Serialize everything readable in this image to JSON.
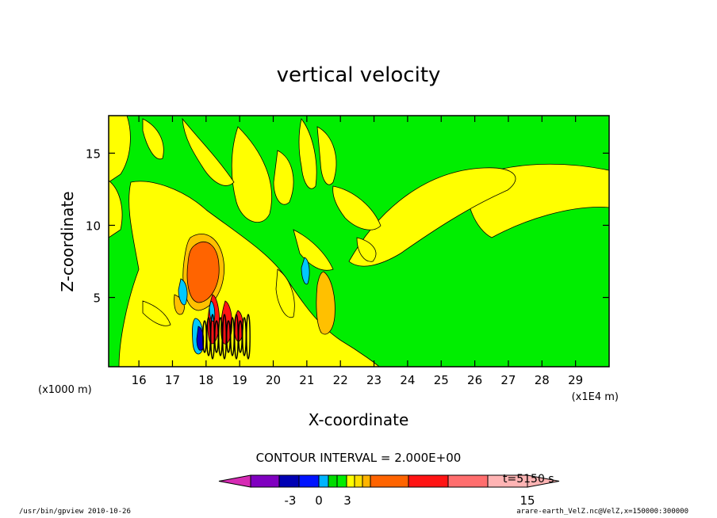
{
  "chart_data": {
    "type": "heatmap",
    "title": "vertical velocity",
    "xlabel": "X-coordinate",
    "ylabel": "Z-coordinate",
    "x_unit_left": "(x1000 m)",
    "x_unit_right": "(x1E4 m)",
    "xlim": [
      15.1,
      30.0
    ],
    "ylim": [
      0.2,
      17.6
    ],
    "x_ticks": [
      "16",
      "17",
      "18",
      "19",
      "20",
      "21",
      "22",
      "23",
      "24",
      "25",
      "26",
      "27",
      "28",
      "29"
    ],
    "x_tick_values": [
      16,
      17,
      18,
      19,
      20,
      21,
      22,
      23,
      24,
      25,
      26,
      27,
      28,
      29
    ],
    "y_ticks": [
      "5",
      "10",
      "15"
    ],
    "y_tick_values": [
      5,
      10,
      15
    ],
    "contour_interval": "CONTOUR INTERVAL = 2.000E+00",
    "time_label": "t=5150 s",
    "colorbar": {
      "levels": [
        -12,
        -10,
        -8,
        -6,
        -4,
        -2,
        0,
        2,
        4,
        6,
        8,
        10,
        12,
        14
      ],
      "colors": [
        "#d62bb4",
        "#8000c0",
        "#0000b4",
        "#0014ff",
        "#00b4ff",
        "#00dc00",
        "#00ee00",
        "#ffff00",
        "#ffe000",
        "#ffb400",
        "#ff6400",
        "#ff1414",
        "#ff6e6e",
        "#ffb4b4"
      ],
      "tick_labels": [
        "-3",
        "0",
        "3",
        "15"
      ],
      "tick_values": [
        -3,
        0,
        3,
        15
      ]
    },
    "fields": {
      "background": "#00ee00",
      "yellow": "#ffff00",
      "gold": "#ffc000",
      "orange": "#ff6400",
      "red": "#ff1414",
      "blue": "#0000c8",
      "cyan": "#00c8ff",
      "black": "#000000"
    }
  },
  "footer": {
    "left": "/usr/bin/gpview  2010-10-26",
    "right": "arare-earth_VelZ.nc@VelZ,x=150000:300000"
  }
}
